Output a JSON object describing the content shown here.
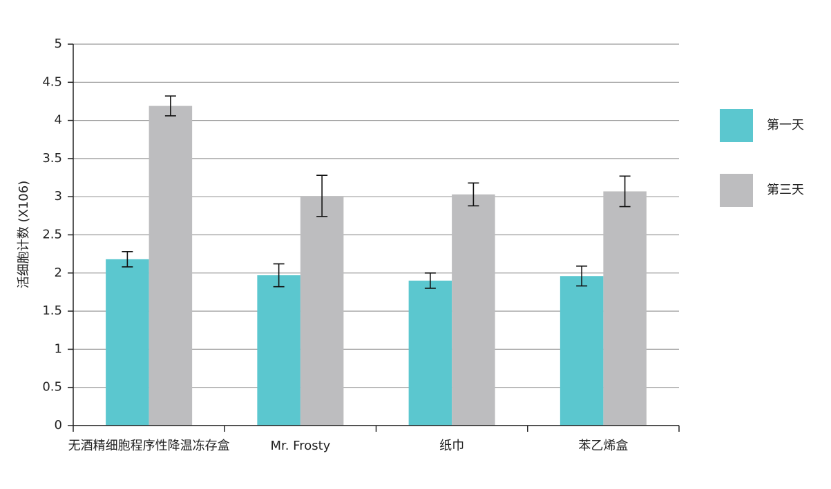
{
  "chart_data": {
    "type": "bar",
    "y_label": "活细胞计数 (X106)",
    "categories": [
      "无酒精细胞程序性降温冻存盒",
      "Mr. Frosty",
      "纸巾",
      "苯乙烯盒"
    ],
    "series": [
      {
        "name": "第一天",
        "color": "#5bc7cf",
        "values": [
          2.18,
          1.97,
          1.9,
          1.96
        ],
        "errors": [
          0.1,
          0.15,
          0.1,
          0.13
        ]
      },
      {
        "name": "第三天",
        "color": "#bdbdbf",
        "values": [
          4.19,
          3.01,
          3.03,
          3.07
        ],
        "errors": [
          0.13,
          0.27,
          0.15,
          0.2
        ]
      }
    ],
    "ylim": [
      0,
      5
    ],
    "yticks": [
      0,
      0.5,
      1,
      1.5,
      2,
      2.5,
      3,
      3.5,
      4,
      4.5,
      5
    ],
    "grid": true
  }
}
